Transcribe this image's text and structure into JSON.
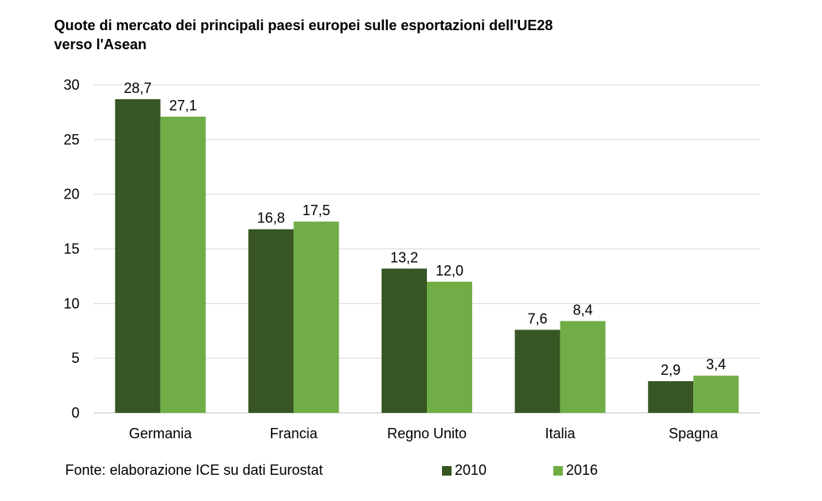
{
  "title_line1": "Quote di mercato dei principali  paesi europei sulle esportazioni dell'UE28",
  "title_line2": "verso l'Asean",
  "source": "Fonte: elaborazione  ICE su dati Eurostat",
  "colors": {
    "s2010": "#375623",
    "s2016": "#70ad47",
    "grid": "#d9d9d9"
  },
  "chart_data": {
    "type": "bar",
    "categories": [
      "Germania",
      "Francia",
      "Regno Unito",
      "Italia",
      "Spagna"
    ],
    "series": [
      {
        "name": "2010",
        "values": [
          28.7,
          16.8,
          13.2,
          7.6,
          2.9
        ],
        "labels": [
          "28,7",
          "16,8",
          "13,2",
          "7,6",
          "2,9"
        ]
      },
      {
        "name": "2016",
        "values": [
          27.1,
          17.5,
          12.0,
          8.4,
          3.4
        ],
        "labels": [
          "27,1",
          "17,5",
          "12,0",
          "8,4",
          "3,4"
        ]
      }
    ],
    "ylim": [
      0,
      30
    ],
    "yticks": [
      0,
      5,
      10,
      15,
      20,
      25,
      30
    ],
    "grid": true,
    "legend": "bottom"
  }
}
